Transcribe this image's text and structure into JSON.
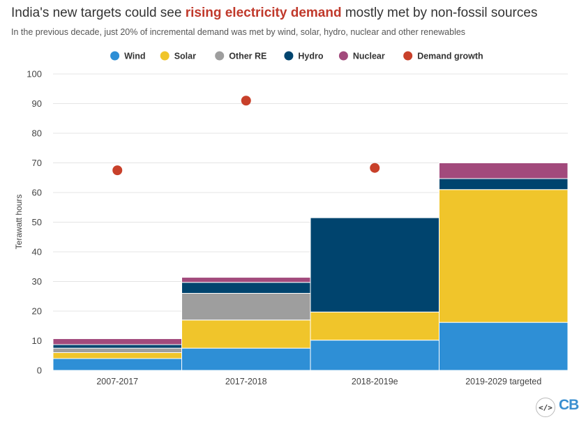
{
  "title": {
    "prefix": "India's new targets could see ",
    "highlight": "rising electricity demand",
    "suffix": " mostly met by non-fossil sources"
  },
  "subtitle": "In the previous decade, just 20% of incremental demand was met by wind, solar, hydro, nuclear and other renewables",
  "footer": {
    "code_icon": "</>",
    "logo_text": "CB"
  },
  "chart_data": {
    "type": "bar",
    "stacked": true,
    "variable_width": true,
    "categories": [
      "2007-2017",
      "2017-2018",
      "2018-2019e",
      "2019-2029 targeted"
    ],
    "ylabel": "Terawatt hours",
    "ylim": [
      0,
      100
    ],
    "yticks": [
      0,
      10,
      20,
      30,
      40,
      50,
      60,
      70,
      80,
      90,
      100
    ],
    "grid": true,
    "legend_position": "top-center",
    "series": [
      {
        "name": "Wind",
        "color": "#2e8fd6",
        "values": [
          4.0,
          7.5,
          10.2,
          16.2
        ]
      },
      {
        "name": "Solar",
        "color": "#f0c52b",
        "values": [
          2.0,
          9.5,
          9.5,
          44.8
        ]
      },
      {
        "name": "Other RE",
        "color": "#9e9e9e",
        "values": [
          1.5,
          9.0,
          0,
          0
        ]
      },
      {
        "name": "Hydro",
        "color": "#00446e",
        "values": [
          1.2,
          3.7,
          31.8,
          3.7
        ]
      },
      {
        "name": "Nuclear",
        "color": "#a24a7c",
        "values": [
          2.0,
          1.7,
          0,
          5.3
        ]
      }
    ],
    "markers": {
      "name": "Demand growth",
      "color": "#c8402a",
      "values": [
        67.5,
        91,
        68.3,
        null
      ]
    }
  }
}
